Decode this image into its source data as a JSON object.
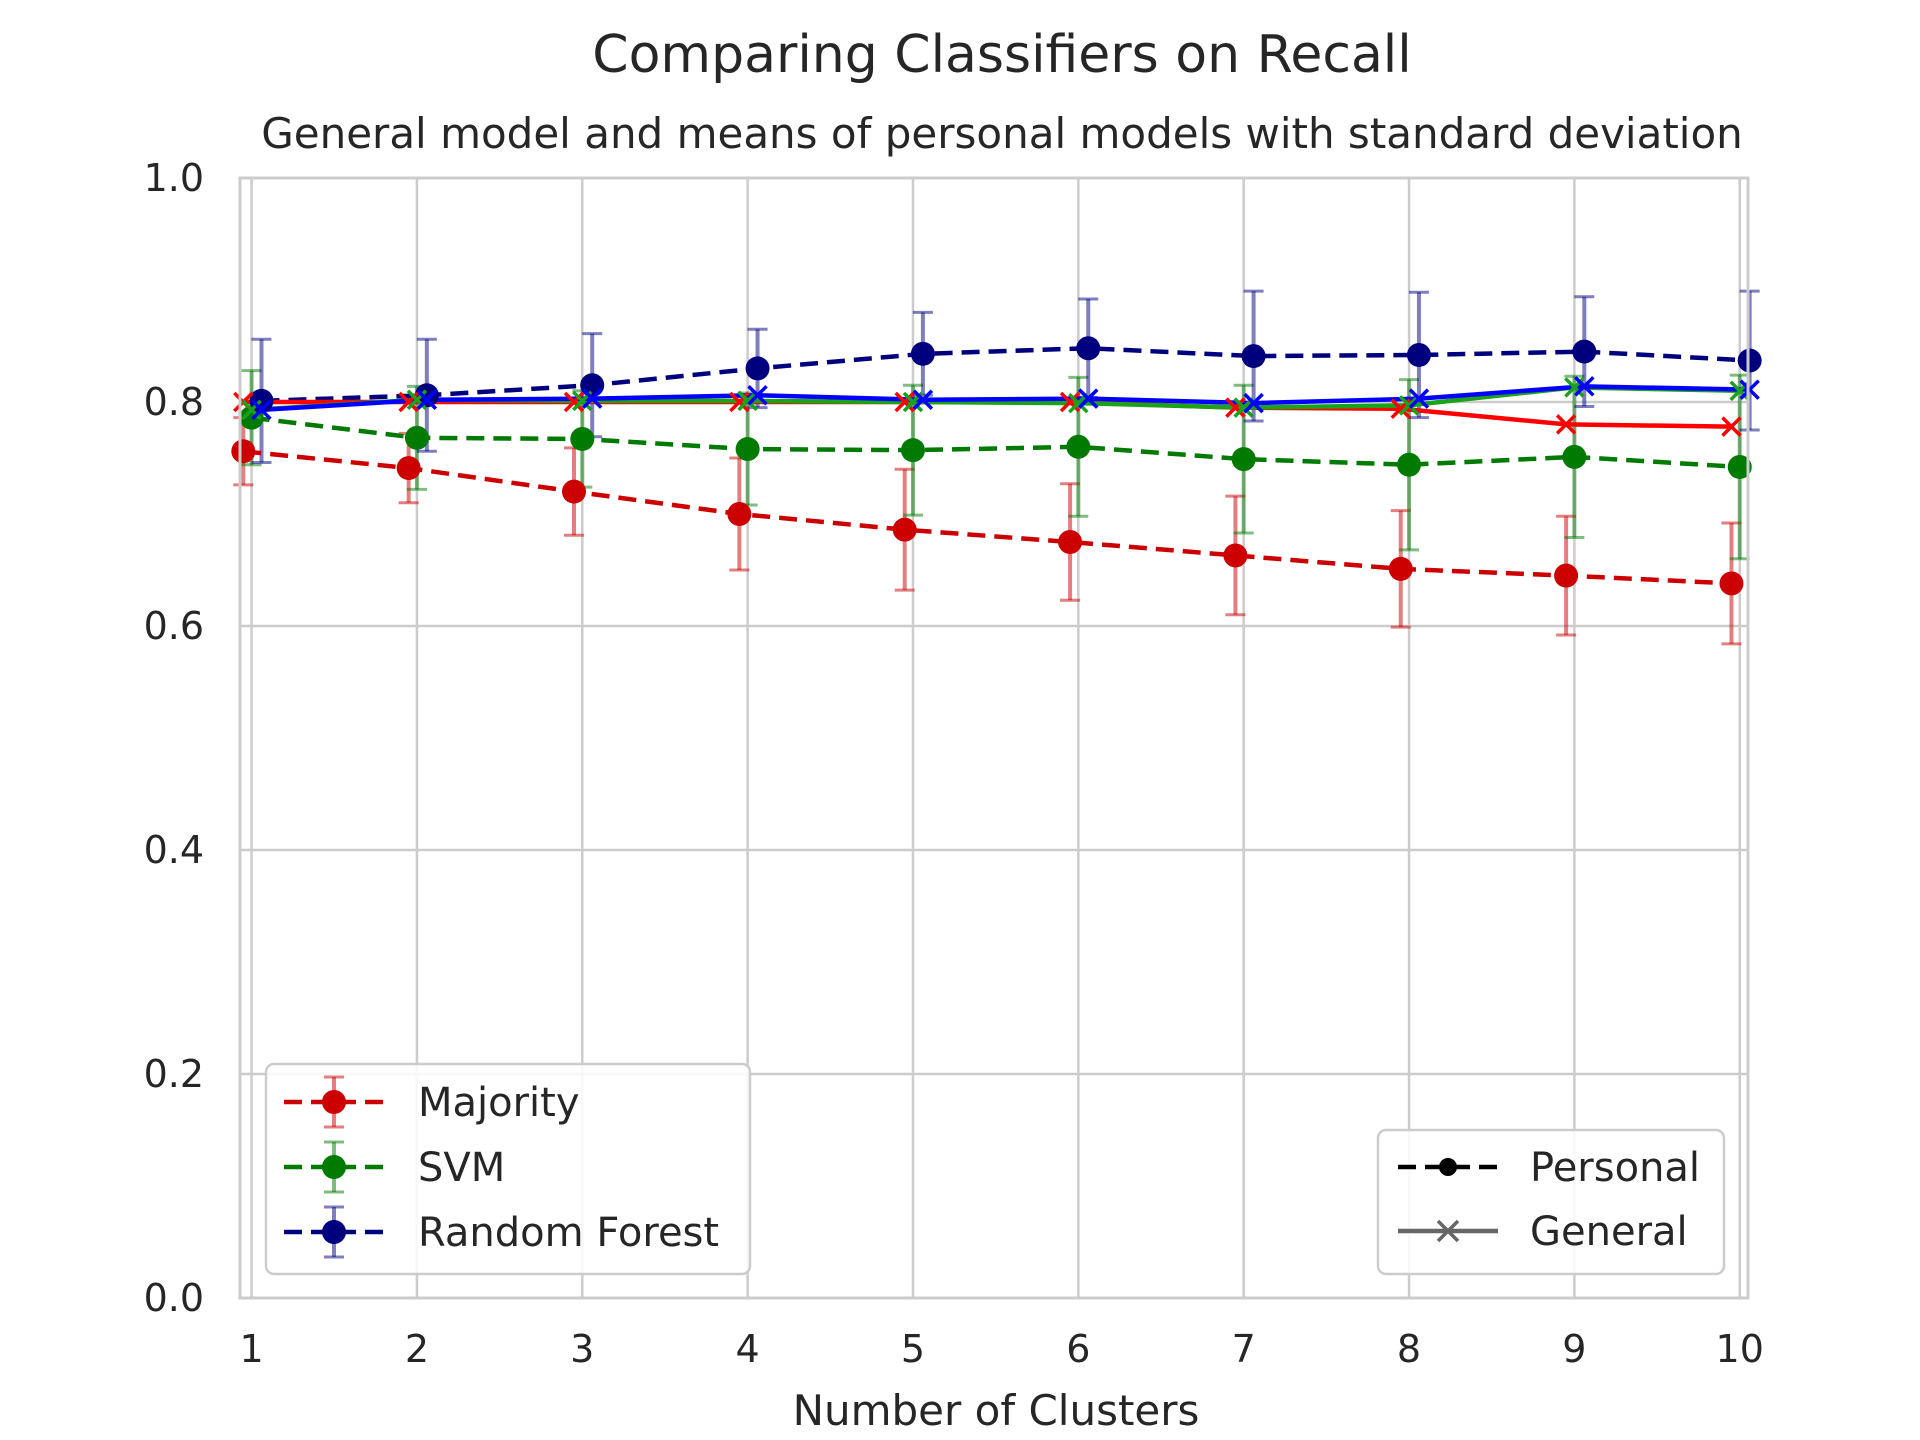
{
  "chart_data": {
    "type": "line",
    "title": "Comparing Classifiers on Recall",
    "subtitle": "General model and means of personal models with standard deviation",
    "xlabel": "Number of Clusters",
    "ylabel": "",
    "xlim": [
      0.93,
      10.05
    ],
    "ylim": [
      0.0,
      1.0
    ],
    "x_ticks": [
      "1",
      "2",
      "3",
      "4",
      "5",
      "6",
      "7",
      "8",
      "9",
      "10"
    ],
    "y_ticks": [
      "0.0",
      "0.2",
      "0.4",
      "0.6",
      "0.8",
      "1.0"
    ],
    "grid": true,
    "x": [
      1,
      2,
      3,
      4,
      5,
      6,
      7,
      8,
      9,
      10
    ],
    "colors": {
      "majority_personal": "#cc0000",
      "majority_general": "#ff0000",
      "svm_personal": "#007a00",
      "svm_general": "#1aa31a",
      "rf_personal": "#00007f",
      "rf_general": "#0000ff"
    },
    "series": [
      {
        "name": "Majority",
        "kind": "Personal",
        "values": [
          0.756,
          0.741,
          0.72,
          0.7,
          0.686,
          0.675,
          0.663,
          0.651,
          0.645,
          0.638
        ],
        "std": [
          0.03,
          0.031,
          0.039,
          0.05,
          0.054,
          0.052,
          0.053,
          0.052,
          0.053,
          0.054
        ],
        "x_offset": -0.05,
        "color": "#cc0000",
        "marker": "circle",
        "dash": true
      },
      {
        "name": "SVM",
        "kind": "Personal",
        "values": [
          0.786,
          0.768,
          0.767,
          0.758,
          0.757,
          0.76,
          0.749,
          0.744,
          0.751,
          0.742
        ],
        "std": [
          0.042,
          0.046,
          0.043,
          0.05,
          0.058,
          0.062,
          0.066,
          0.076,
          0.072,
          0.082
        ],
        "x_offset": 0.0,
        "color": "#007a00",
        "marker": "circle",
        "dash": true
      },
      {
        "name": "Random Forest",
        "kind": "Personal",
        "values": [
          0.801,
          0.806,
          0.815,
          0.83,
          0.843,
          0.848,
          0.841,
          0.842,
          0.845,
          0.837
        ],
        "std": [
          0.055,
          0.05,
          0.046,
          0.035,
          0.037,
          0.044,
          0.058,
          0.056,
          0.049,
          0.062
        ],
        "x_offset": 0.06,
        "color": "#00007f",
        "marker": "circle",
        "dash": true
      },
      {
        "name": "Majority",
        "kind": "General",
        "values": [
          0.8,
          0.8,
          0.8,
          0.8,
          0.8,
          0.8,
          0.795,
          0.794,
          0.78,
          0.778
        ],
        "x_offset": -0.05,
        "color": "#ff0000",
        "marker": "x",
        "dash": false
      },
      {
        "name": "SVM",
        "kind": "General",
        "values": [
          0.793,
          0.802,
          0.801,
          0.801,
          0.8,
          0.799,
          0.795,
          0.797,
          0.813,
          0.81
        ],
        "x_offset": 0.0,
        "color": "#1aa31a",
        "marker": "x",
        "dash": false
      },
      {
        "name": "Random Forest",
        "kind": "General",
        "values": [
          0.793,
          0.802,
          0.803,
          0.806,
          0.802,
          0.803,
          0.799,
          0.803,
          0.814,
          0.811
        ],
        "x_offset": 0.06,
        "color": "#0000ff",
        "marker": "x",
        "dash": false
      }
    ],
    "legend_classifiers": {
      "placement": "lower-left",
      "entries": [
        {
          "label": "Majority",
          "color": "#cc0000"
        },
        {
          "label": "SVM",
          "color": "#007a00"
        },
        {
          "label": "Random Forest",
          "color": "#00007f"
        }
      ]
    },
    "legend_models": {
      "placement": "lower-right",
      "entries": [
        {
          "label": "Personal",
          "color": "#000000",
          "style": "dashed-circle"
        },
        {
          "label": "General",
          "color": "#666666",
          "style": "solid-x"
        }
      ]
    }
  }
}
